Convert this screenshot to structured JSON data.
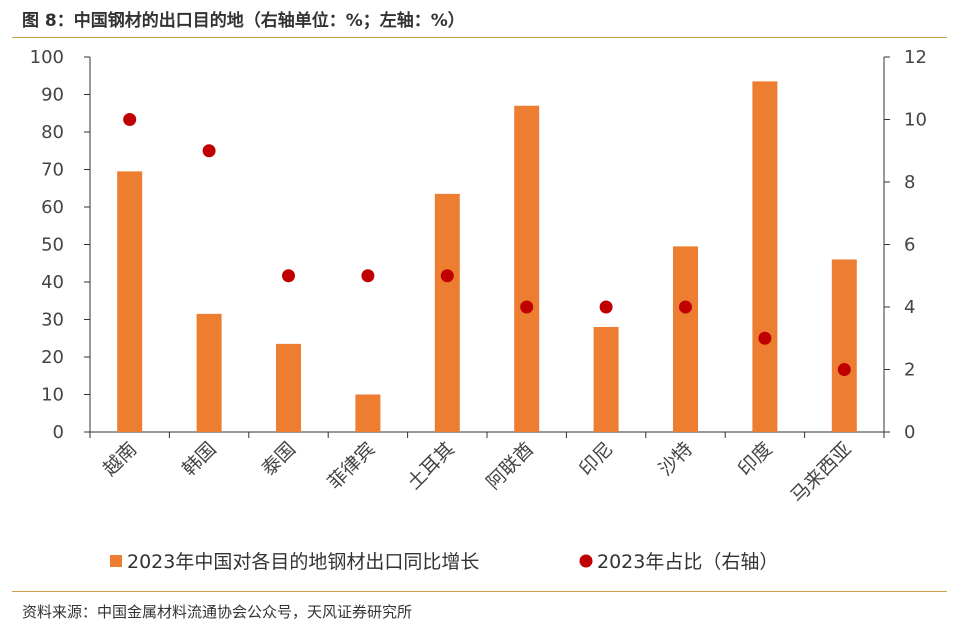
{
  "page": {
    "title": "图 8：中国钢材的出口目的地（右轴单位：%；左轴：%）",
    "source": "资料来源：中国金属材料流通协会公众号，天风证券研究所"
  },
  "colors": {
    "bar": "#ED7D31",
    "dot": "#C00000",
    "rule": "#c9a14a",
    "axis": "#333333"
  },
  "chart_data": {
    "type": "bar",
    "categories": [
      "越南",
      "韩国",
      "泰国",
      "菲律宾",
      "土耳其",
      "阿联酋",
      "印尼",
      "沙特",
      "印度",
      "马来西亚"
    ],
    "series": [
      {
        "name": "2023年中国对各目的地钢材出口同比增长",
        "type": "bar",
        "axis": "left",
        "values": [
          69.5,
          31.5,
          23.5,
          10,
          63.5,
          87,
          28,
          49.5,
          93.5,
          46
        ]
      },
      {
        "name": "2023年占比（右轴）",
        "type": "scatter",
        "axis": "right",
        "values": [
          10,
          9,
          5,
          5,
          5,
          4,
          4,
          4,
          3,
          2
        ]
      }
    ],
    "y_left": {
      "range": [
        0,
        100
      ],
      "ticks": [
        0,
        10,
        20,
        30,
        40,
        50,
        60,
        70,
        80,
        90,
        100
      ]
    },
    "y_right": {
      "range": [
        0,
        12
      ],
      "ticks": [
        0,
        2,
        4,
        6,
        8,
        10,
        12
      ]
    },
    "legend_position": "bottom",
    "grid": false
  }
}
